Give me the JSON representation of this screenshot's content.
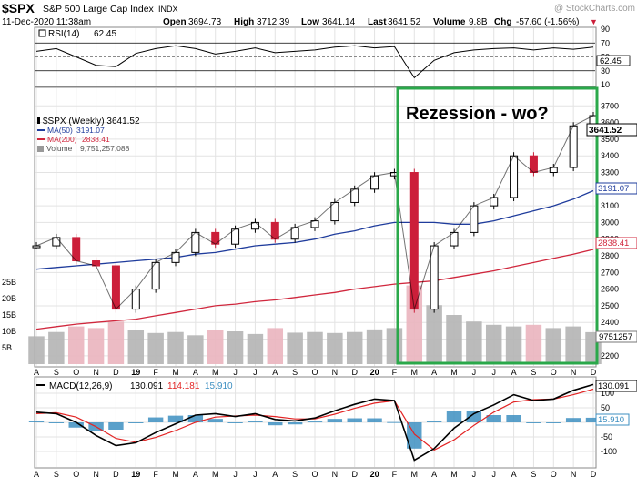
{
  "header": {
    "symbol": "$SPX",
    "name": "S&P 500 Large Cap Index",
    "exchange": "INDX",
    "watermark": "@ StockCharts.com",
    "datetime": "11-Dec-2020 11:38am",
    "stats": [
      {
        "label": "Open",
        "value": "3694.73"
      },
      {
        "label": "High",
        "value": "3712.39"
      },
      {
        "label": "Low",
        "value": "3641.14"
      },
      {
        "label": "Last",
        "value": "3641.52"
      },
      {
        "label": "Volume",
        "value": "9.8B"
      },
      {
        "label": "Chg",
        "value": "-57.60 (-1.56%)"
      }
    ],
    "chg_marker": "▼"
  },
  "colors": {
    "up": "#000000",
    "down": "#cc1f3a",
    "ma50": "#1f3c9c",
    "ma200": "#d0273d",
    "volume_gray": "#b4b4b4",
    "volume_pink": "#eab4be",
    "rsi_line": "#000000",
    "rsi_fill": "#4f8f3f",
    "macd_line": "#000000",
    "signal_line": "#e32424",
    "hist": "#3d8fc1",
    "highlight_box": "#2aa84a",
    "badge_dark": "#1f3c9c",
    "badge_red": "#d0273d",
    "grid": "#e3e3e3"
  },
  "annotation": "Rezession - wo?",
  "months": [
    "A",
    "S",
    "O",
    "N",
    "D",
    "19",
    "F",
    "M",
    "A",
    "M",
    "J",
    "J",
    "A",
    "S",
    "O",
    "N",
    "D",
    "20",
    "F",
    "M",
    "A",
    "M",
    "J",
    "J",
    "A",
    "S",
    "O",
    "N",
    "D"
  ],
  "chart_data": [
    {
      "type": "line",
      "name": "RSI panel",
      "label": "RSI(14)",
      "value": "62.45",
      "ylim": [
        10,
        90
      ],
      "ticks": [
        "90",
        "70",
        "50",
        "30",
        "10"
      ],
      "levels": [
        70,
        30
      ],
      "x": [
        "A",
        "S",
        "O",
        "N",
        "D",
        "19",
        "F",
        "M",
        "A",
        "M",
        "J",
        "J",
        "A",
        "S",
        "O",
        "N",
        "D",
        "20",
        "F",
        "M",
        "A",
        "M",
        "J",
        "J",
        "A",
        "S",
        "O",
        "N",
        "D"
      ],
      "values": [
        58,
        62,
        50,
        38,
        36,
        55,
        62,
        66,
        62,
        54,
        58,
        63,
        56,
        58,
        60,
        64,
        66,
        63,
        65,
        20,
        45,
        56,
        60,
        62,
        63,
        60,
        63,
        61,
        64
      ]
    },
    {
      "type": "line",
      "name": "Price panel",
      "title": "$SPX (Weekly) 3641.52",
      "last_value": "3641.52",
      "ylim": [
        2150,
        3800
      ],
      "ticks": [
        2200,
        2300,
        2400,
        2500,
        2600,
        2700,
        2800,
        2900,
        3000,
        3100,
        3200,
        3300,
        3400,
        3500,
        3600,
        3700
      ],
      "x": [
        "A",
        "S",
        "O",
        "N",
        "D",
        "19",
        "F",
        "M",
        "A",
        "M",
        "J",
        "J",
        "A",
        "S",
        "O",
        "N",
        "D",
        "20",
        "F",
        "M",
        "A",
        "M",
        "J",
        "J",
        "A",
        "S",
        "O",
        "N",
        "D"
      ],
      "series": [
        {
          "name": "$SPX weekly close",
          "values": [
            2860,
            2910,
            2770,
            2740,
            2480,
            2600,
            2760,
            2820,
            2940,
            2870,
            2960,
            3000,
            2900,
            2970,
            3010,
            3120,
            3200,
            3280,
            3300,
            2480,
            2860,
            2940,
            3100,
            3150,
            3400,
            3300,
            3330,
            3580,
            3641.52
          ]
        },
        {
          "name": "MA(50)",
          "label": "MA(50)",
          "last": "3191.07",
          "values": [
            2720,
            2730,
            2740,
            2750,
            2760,
            2770,
            2780,
            2790,
            2810,
            2820,
            2840,
            2860,
            2870,
            2880,
            2900,
            2930,
            2950,
            2980,
            3000,
            3000,
            3000,
            2990,
            2990,
            3010,
            3040,
            3070,
            3100,
            3140,
            3191.07
          ]
        },
        {
          "name": "MA(200)",
          "label": "MA(200)",
          "last": "2838.41",
          "values": [
            2360,
            2375,
            2390,
            2400,
            2410,
            2420,
            2440,
            2460,
            2480,
            2500,
            2510,
            2525,
            2535,
            2550,
            2565,
            2580,
            2600,
            2615,
            2630,
            2640,
            2650,
            2670,
            2690,
            2710,
            2735,
            2760,
            2785,
            2810,
            2838.41
          ]
        }
      ],
      "volume": {
        "label": "Volume",
        "value": "9,751,257,088",
        "last_badge": "9751257",
        "unit_ticks": [
          "25B",
          "20B",
          "15B",
          "10B",
          "5B"
        ],
        "values_billions": [
          8.5,
          9.8,
          11.5,
          11,
          13,
          10.5,
          9.5,
          9.8,
          8.8,
          10.5,
          10,
          9.2,
          11,
          9.6,
          9.8,
          9.5,
          9.8,
          10.6,
          11,
          24,
          18,
          15,
          13,
          12,
          11.5,
          12,
          11,
          11.5,
          9.75
        ]
      }
    },
    {
      "type": "line",
      "name": "MACD panel",
      "label": "MACD(12,26,9)",
      "macd": "130.091",
      "signal": "114.181",
      "histogram": "15.910",
      "ylim": [
        -150,
        150
      ],
      "ticks": [
        100,
        50,
        0,
        -50,
        -100
      ],
      "x": [
        "A",
        "S",
        "O",
        "N",
        "D",
        "19",
        "F",
        "M",
        "A",
        "M",
        "J",
        "J",
        "A",
        "S",
        "O",
        "N",
        "D",
        "20",
        "F",
        "M",
        "A",
        "M",
        "J",
        "J",
        "A",
        "S",
        "O",
        "N",
        "D"
      ],
      "series": [
        {
          "name": "MACD",
          "values": [
            35,
            30,
            0,
            -45,
            -80,
            -70,
            -35,
            -5,
            25,
            30,
            20,
            30,
            10,
            5,
            15,
            40,
            62,
            80,
            75,
            -130,
            -90,
            -20,
            30,
            60,
            95,
            75,
            80,
            110,
            130.091
          ]
        },
        {
          "name": "Signal",
          "values": [
            30,
            33,
            18,
            -15,
            -55,
            -68,
            -52,
            -28,
            0,
            18,
            22,
            25,
            20,
            12,
            12,
            28,
            48,
            66,
            74,
            -40,
            -95,
            -60,
            -10,
            35,
            70,
            78,
            80,
            95,
            114.181
          ]
        },
        {
          "name": "Histogram",
          "values": [
            5,
            -3,
            -18,
            -30,
            -25,
            -2,
            17,
            23,
            25,
            12,
            -2,
            5,
            -10,
            -7,
            3,
            12,
            14,
            14,
            1,
            -90,
            5,
            40,
            40,
            25,
            25,
            -3,
            0,
            15,
            15.91
          ]
        }
      ]
    }
  ]
}
